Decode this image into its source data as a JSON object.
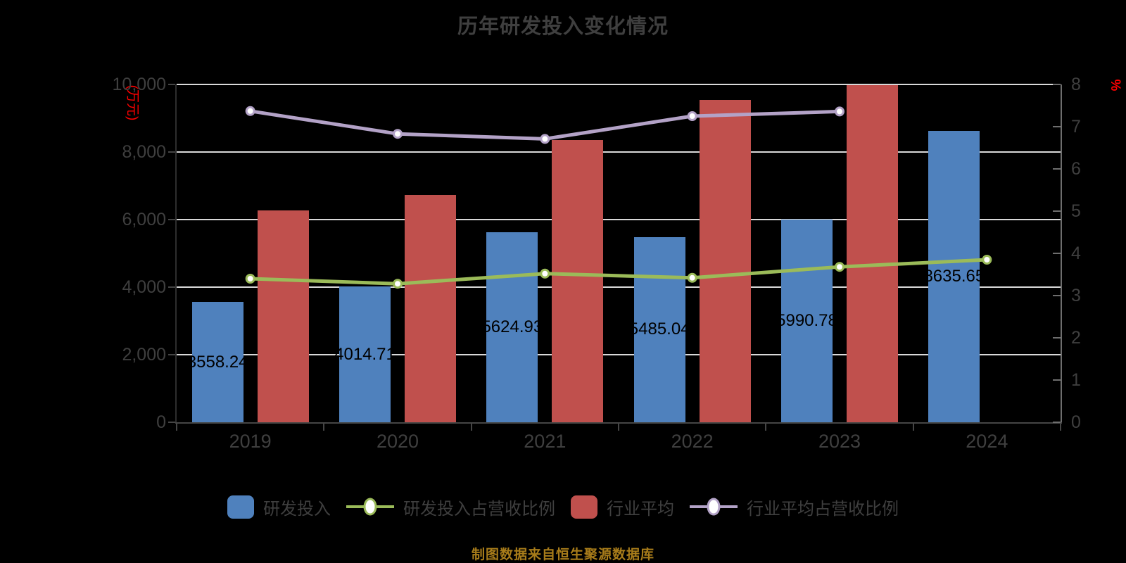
{
  "title": "历年研发投入变化情况",
  "footer_note": "制图数据来自恒生聚源数据库",
  "colors": {
    "background": "#000000",
    "bar_blue": "#4F81BD",
    "bar_red": "#C0504D",
    "line_green": "#9BBB59",
    "line_purple": "#B3A2C7",
    "marker_fill": "#FFFFFF",
    "grid": "#D9D9D9",
    "axis_text": "#3F3F3F",
    "title_text": "#3F3F3F",
    "bar_label": "#000000",
    "unit_red": "#FF0000",
    "footer_gold": "#A87C1A",
    "spine_left": "#2E2E2E",
    "spine_right": "#6E6E6E",
    "spine_bottom": "#454545",
    "tick_dark": "#454545",
    "tick_gray": "#6E6E6E"
  },
  "left_axis": {
    "unit": "(万元)",
    "tick_values": [
      0,
      2000,
      4000,
      6000,
      8000,
      10000
    ],
    "tick_labels": [
      "0",
      "2,000",
      "4,000",
      "6,000",
      "8,000",
      "10,000"
    ],
    "gridline_values": [
      2000,
      4000,
      6000,
      8000,
      10000
    ]
  },
  "right_axis": {
    "unit": "%",
    "tick_values": [
      0,
      1,
      2,
      3,
      4,
      5,
      6,
      7,
      8
    ],
    "tick_labels": [
      "0",
      "1",
      "2",
      "3",
      "4",
      "5",
      "6",
      "7",
      "8"
    ]
  },
  "legend": [
    {
      "id": "rd-investment",
      "marker": "bar",
      "color_key": "bar_blue",
      "label": "研发投入"
    },
    {
      "id": "rd-ratio",
      "marker": "line",
      "color_key": "line_green",
      "label": "研发投入占营收比例"
    },
    {
      "id": "industry-average",
      "marker": "bar",
      "color_key": "bar_red",
      "label": "行业平均"
    },
    {
      "id": "industry-ratio",
      "marker": "line",
      "color_key": "line_purple",
      "label": "行业平均占营收比例"
    }
  ],
  "chart_data": {
    "type": "combo bar+line",
    "categories": [
      "2019",
      "2020",
      "2021",
      "2022",
      "2023",
      "2024"
    ],
    "series": [
      {
        "id": "rd-investment",
        "name": "研发投入",
        "kind": "bar",
        "axis": "left",
        "color_key": "bar_blue",
        "values": [
          3558.24,
          4014.71,
          5624.93,
          5485.04,
          5990.78,
          8635.65
        ],
        "value_labels": [
          "3558.24",
          "4014.71",
          "5624.93",
          "5485.04",
          "5990.78",
          "8635.65"
        ]
      },
      {
        "id": "rd-ratio",
        "name": "研发投入占营收比例",
        "kind": "line",
        "axis": "right",
        "color_key": "line_green",
        "values": [
          3.4,
          3.28,
          3.52,
          3.42,
          3.68,
          3.85
        ]
      },
      {
        "id": "industry-average",
        "name": "行业平均",
        "kind": "bar",
        "axis": "left",
        "color_key": "bar_red",
        "values": [
          6265,
          6736,
          8359,
          9546,
          9976,
          null
        ]
      },
      {
        "id": "industry-ratio",
        "name": "行业平均占营收比例",
        "kind": "line",
        "axis": "right",
        "color_key": "line_purple",
        "values": [
          7.37,
          6.83,
          6.71,
          7.25,
          7.36,
          null
        ]
      }
    ],
    "ylim_left": [
      0,
      10000
    ],
    "ylim_right": [
      0,
      8
    ],
    "xlabel": "",
    "ylabel_left": "(万元)",
    "ylabel_right": "%",
    "grid": "horizontal",
    "legend_position": "bottom"
  }
}
